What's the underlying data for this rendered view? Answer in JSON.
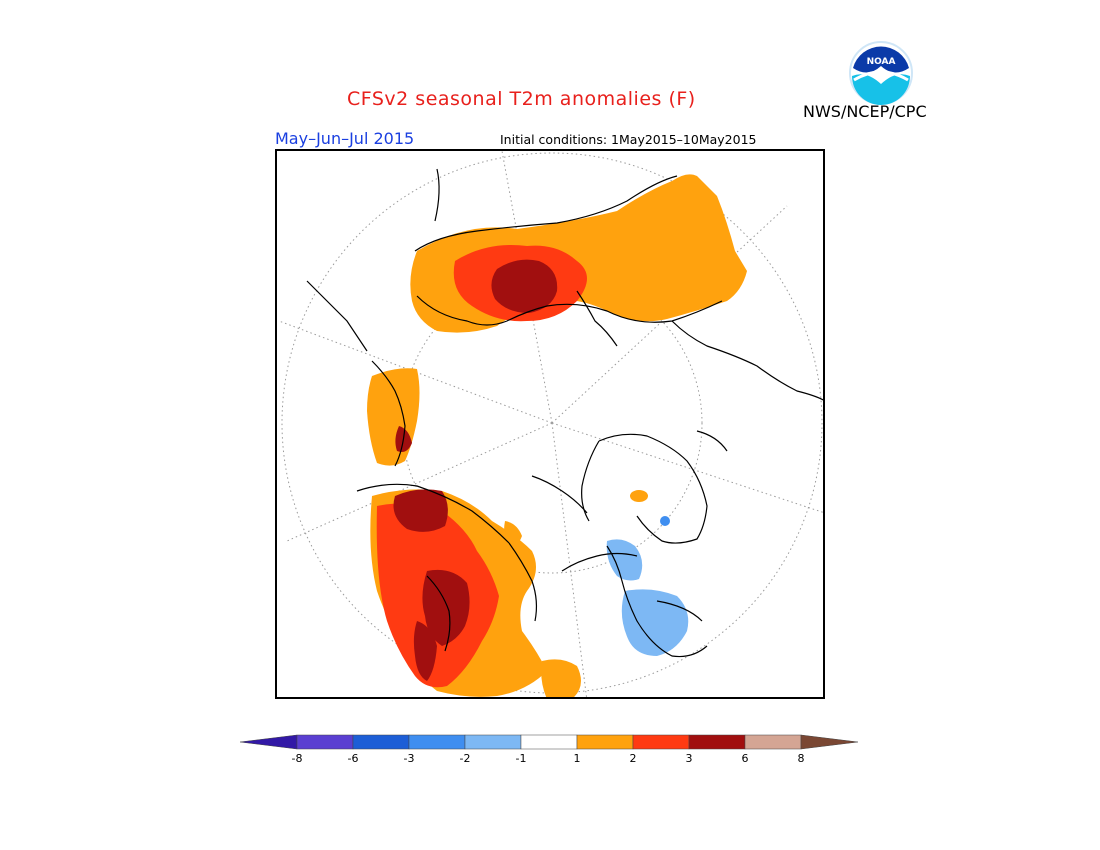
{
  "title": "CFSv2 seasonal T2m anomalies (F)",
  "agency": "NWS/NCEP/CPC",
  "logo_text": "NOAA",
  "period": "May–Jun–Jul 2015",
  "initial_conditions": "Initial conditions: 1May2015–10May2015",
  "legend": {
    "bins": [
      {
        "color": "#3219a6"
      },
      {
        "color": "#5a3fd1"
      },
      {
        "color": "#1d5ed6"
      },
      {
        "color": "#3f8ef0"
      },
      {
        "color": "#7db8f4"
      },
      {
        "color": "#ffffff"
      },
      {
        "color": "#ffa20e"
      },
      {
        "color": "#ff3a12"
      },
      {
        "color": "#a10f0f"
      },
      {
        "color": "#d4a594"
      },
      {
        "color": "#7a4733"
      }
    ],
    "ticks": [
      "-8",
      "-6",
      "-3",
      "-2",
      "-1",
      "1",
      "2",
      "3",
      "6",
      "8"
    ]
  },
  "colors": {
    "warm1": "#ffa20e",
    "warm2": "#ff3a12",
    "warm3": "#a10f0f",
    "cool1": "#7db8f4",
    "cool2": "#3f8ef0",
    "title": "#e8201c",
    "period": "#1a3fe0"
  }
}
